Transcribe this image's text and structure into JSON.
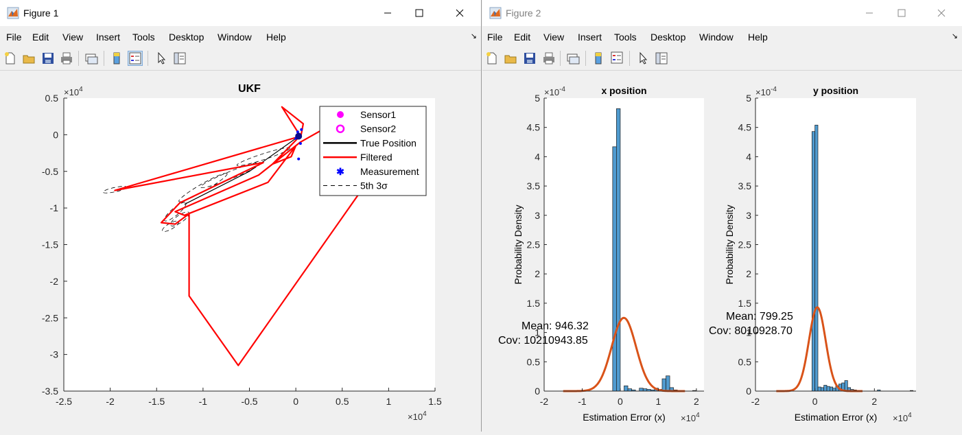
{
  "windows": [
    {
      "title": "Figure 1",
      "menu": [
        "File",
        "Edit",
        "View",
        "Insert",
        "Tools",
        "Desktop",
        "Window",
        "Help"
      ]
    },
    {
      "title": "Figure 2",
      "menu": [
        "File",
        "Edit",
        "View",
        "Insert",
        "Tools",
        "Desktop",
        "Window",
        "Help"
      ]
    }
  ],
  "colors": {
    "filtered": "#ff0000",
    "sensor": "#ff00ff",
    "measurement": "#0000ff",
    "hist_bar": "#4f9bd0",
    "pdf_curve": "#d95319"
  },
  "icons": [
    "new-figure-icon",
    "open-file-icon",
    "save-icon",
    "print-icon",
    "link-plot-icon",
    "colorbar-icon",
    "legend-icon",
    "pointer-icon",
    "property-editor-icon"
  ],
  "chart_data": [
    {
      "type": "line",
      "title": "UKF",
      "x_multiplier": "×10^4",
      "y_multiplier": "×10^4",
      "xlim": [
        -2.5,
        1.5
      ],
      "ylim": [
        -3.5,
        0.5
      ],
      "xticks": [
        "-2.5",
        "-2",
        "-1.5",
        "-1",
        "-0.5",
        "0",
        "0.5",
        "1",
        "1.5"
      ],
      "yticks": [
        "0.5",
        "0",
        "-0.5",
        "-1",
        "-1.5",
        "-2",
        "-2.5",
        "-3",
        "-3.5"
      ],
      "legend_position": "top-right",
      "legend": [
        "Sensor1",
        "Sensor2",
        "True Position",
        "Filtered",
        "Measurement",
        "5th 3σ"
      ],
      "series": [
        {
          "name": "Filtered",
          "x": [
            0.05,
            0.08,
            -0.15,
            0.05,
            -1.95,
            -0.35,
            -1.25,
            -1.45,
            -1.3,
            -1.15,
            -1.15,
            -0.62,
            0.85,
            0.4,
            0.05,
            -0.4,
            -1.3,
            -1.2,
            -0.3,
            0.0,
            -0.05,
            -0.25,
            0.02
          ],
          "y": [
            -0.05,
            0.15,
            0.38,
            -0.02,
            -0.76,
            -0.38,
            -0.93,
            -1.2,
            -1.22,
            -1.08,
            -2.2,
            -3.15,
            -0.5,
            0.15,
            -0.1,
            -0.55,
            -1.05,
            -1.1,
            -0.65,
            -0.15,
            -0.3,
            -0.4,
            -0.05
          ]
        },
        {
          "name": "Measurement",
          "x": [
            0.02,
            0.04,
            0.0,
            0.05,
            0.03,
            0.06
          ],
          "y": [
            0.04,
            -0.02,
            -0.05,
            -0.12,
            -0.33,
            0.07
          ]
        }
      ]
    },
    {
      "type": "bar",
      "title": "x position",
      "ylabel": "Probability Density",
      "xlabel": "Estimation Error (x)",
      "x_multiplier": "×10^4",
      "y_multiplier": "×10^-4",
      "xlim": [
        -2,
        2.2
      ],
      "ylim": [
        0,
        5
      ],
      "xticks": [
        "-2",
        "-1",
        "0",
        "1",
        "2"
      ],
      "yticks": [
        "5",
        "4.5",
        "4",
        "3.5",
        "3",
        "2.5",
        "2",
        "1.5",
        "1",
        "0.5",
        "0"
      ],
      "bin_width": 0.1,
      "bins": [
        {
          "x": -0.15,
          "y": 4.17
        },
        {
          "x": -0.05,
          "y": 4.82
        },
        {
          "x": 0.15,
          "y": 0.09
        },
        {
          "x": 0.25,
          "y": 0.04
        },
        {
          "x": 0.35,
          "y": 0.02
        },
        {
          "x": 0.55,
          "y": 0.05
        },
        {
          "x": 0.65,
          "y": 0.04
        },
        {
          "x": 0.75,
          "y": 0.03
        },
        {
          "x": 0.85,
          "y": 0.02
        },
        {
          "x": 0.95,
          "y": 0.05
        },
        {
          "x": 1.05,
          "y": 0.03
        },
        {
          "x": 1.15,
          "y": 0.21
        },
        {
          "x": 1.25,
          "y": 0.26
        },
        {
          "x": 1.35,
          "y": 0.06
        },
        {
          "x": 1.45,
          "y": 0.02
        },
        {
          "x": 1.95,
          "y": 0.01
        }
      ],
      "pdf_curve": {
        "mean": 0.0946,
        "peak": 1.25,
        "sigma": 0.32,
        "range": [
          -1.5,
          1.7
        ]
      },
      "annotation": {
        "mean": "Mean: 946.32",
        "cov": "Cov: 10210943.85"
      }
    },
    {
      "type": "bar",
      "title": "y position",
      "ylabel": "Probability Density",
      "xlabel": "Estimation Error (x)",
      "x_multiplier": "×10^4",
      "y_multiplier": "×10^-4",
      "xlim": [
        -2,
        3.4
      ],
      "ylim": [
        0,
        5
      ],
      "xticks": [
        "-2",
        "0",
        "2"
      ],
      "yticks": [
        "5",
        "4.5",
        "4",
        "3.5",
        "3",
        "2.5",
        "2",
        "1.5",
        "1",
        "0.5",
        "0"
      ],
      "bin_width": 0.1,
      "bins": [
        {
          "x": -0.05,
          "y": 4.43
        },
        {
          "x": 0.05,
          "y": 4.54
        },
        {
          "x": 0.15,
          "y": 0.07
        },
        {
          "x": 0.25,
          "y": 0.06
        },
        {
          "x": 0.35,
          "y": 0.1
        },
        {
          "x": 0.45,
          "y": 0.08
        },
        {
          "x": 0.55,
          "y": 0.07
        },
        {
          "x": 0.65,
          "y": 0.05
        },
        {
          "x": 0.75,
          "y": 0.09
        },
        {
          "x": 0.85,
          "y": 0.12
        },
        {
          "x": 0.95,
          "y": 0.14
        },
        {
          "x": 1.05,
          "y": 0.18
        },
        {
          "x": 1.15,
          "y": 0.06
        },
        {
          "x": 1.25,
          "y": 0.03
        },
        {
          "x": 1.35,
          "y": 0.02
        },
        {
          "x": 2.15,
          "y": 0.02
        },
        {
          "x": 3.25,
          "y": 0.01
        }
      ],
      "pdf_curve": {
        "mean": 0.0799,
        "peak": 1.43,
        "sigma": 0.28,
        "range": [
          -1.3,
          1.6
        ]
      },
      "annotation": {
        "mean": "Mean: 799.25",
        "cov": "Cov: 8010928.70"
      }
    }
  ]
}
